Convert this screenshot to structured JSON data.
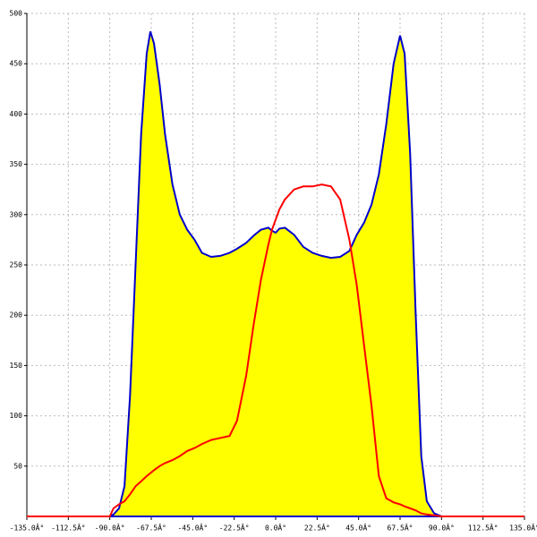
{
  "chart_data": {
    "type": "area",
    "x": [
      -135,
      -90,
      -88,
      -85,
      -82,
      -79,
      -76,
      -73,
      -70,
      -68,
      -66,
      -63,
      -60,
      -56,
      -52,
      -48,
      -44,
      -40,
      -35,
      -30,
      -25,
      -21,
      -16,
      -12,
      -8,
      -4,
      -2,
      0,
      2,
      5,
      10,
      15,
      20,
      25,
      30,
      35,
      40,
      44,
      48,
      52,
      56,
      60,
      64,
      67.5,
      70,
      73,
      76,
      79,
      82,
      86,
      90,
      135
    ],
    "series": [
      {
        "color": "#0000cc",
        "fill_color": "#ffff00",
        "filled": true,
        "values": [
          0,
          0,
          2,
          8,
          30,
          120,
          250,
          380,
          460,
          482,
          470,
          430,
          380,
          330,
          300,
          285,
          275,
          262,
          258,
          259,
          262,
          266,
          272,
          279,
          285,
          287,
          284,
          282,
          286,
          287,
          280,
          268,
          262,
          259,
          257,
          258,
          264,
          280,
          292,
          310,
          340,
          390,
          450,
          478,
          460,
          360,
          200,
          60,
          15,
          3,
          0,
          0
        ]
      },
      {
        "color": "#ff0000",
        "filled": false,
        "values": [
          0,
          0,
          8,
          12,
          15,
          22,
          30,
          35,
          40,
          43,
          46,
          50,
          53,
          56,
          60,
          65,
          68,
          72,
          76,
          78,
          80,
          95,
          140,
          190,
          235,
          270,
          285,
          295,
          305,
          315,
          325,
          328,
          328,
          330,
          328,
          315,
          275,
          230,
          170,
          110,
          40,
          18,
          14,
          12,
          10,
          8,
          6,
          3,
          2,
          1,
          0,
          0
        ]
      }
    ],
    "xlim": [
      -135,
      135
    ],
    "ylim": [
      0,
      500
    ],
    "xticks": [
      {
        "value": -135,
        "label": "-135.0Â°"
      },
      {
        "value": -112.5,
        "label": "-112.5Â°"
      },
      {
        "value": -90,
        "label": "-90.0Â°"
      },
      {
        "value": -67.5,
        "label": "-67.5Â°"
      },
      {
        "value": -45,
        "label": "-45.0Â°"
      },
      {
        "value": -22.5,
        "label": "-22.5Â°"
      },
      {
        "value": 0,
        "label": "0.0Â°"
      },
      {
        "value": 22.5,
        "label": "22.5Â°"
      },
      {
        "value": 45,
        "label": "45.0Â°"
      },
      {
        "value": 67.5,
        "label": "67.5Â°"
      },
      {
        "value": 90,
        "label": "90.0Â°"
      },
      {
        "value": 112.5,
        "label": "112.5Â°"
      },
      {
        "value": 135,
        "label": "135.0Â°"
      }
    ],
    "yticks": [
      50,
      100,
      150,
      200,
      250,
      300,
      350,
      400,
      450,
      500
    ],
    "grid": true
  }
}
